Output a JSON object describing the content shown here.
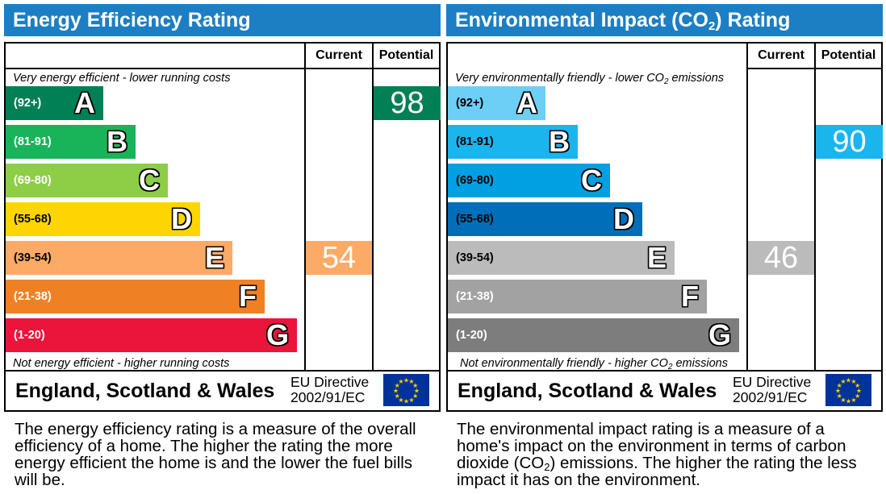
{
  "chart_data": [
    {
      "type": "bar",
      "title": "Energy Efficiency Rating",
      "columns": [
        "Current",
        "Potential"
      ],
      "top_note": "Very energy efficient - lower running costs",
      "bottom_note": "Not energy efficient - higher running costs",
      "categories": [
        "A",
        "B",
        "C",
        "D",
        "E",
        "F",
        "G"
      ],
      "ranges": [
        "(92+)",
        "(81-91)",
        "(69-80)",
        "(55-68)",
        "(39-54)",
        "(21-38)",
        "(1-20)"
      ],
      "colors": [
        "#008054",
        "#19b459",
        "#8dce46",
        "#ffd500",
        "#fcaa65",
        "#ef8023",
        "#e9153b"
      ],
      "current": {
        "value": 54,
        "band": "E",
        "color": "#fcaa65"
      },
      "potential": {
        "value": 98,
        "band": "A",
        "color": "#008054"
      },
      "footer": {
        "region": "England, Scotland & Wales",
        "directive_line1": "EU Directive",
        "directive_line2": "2002/91/EC"
      },
      "description": "The energy efficiency rating is a measure of the overall efficiency of a home. The higher the rating the more energy efficient the home is and the lower the fuel bills will be."
    },
    {
      "type": "bar",
      "title_parts": [
        "Environmental Impact (CO",
        "2",
        ") Rating"
      ],
      "columns": [
        "Current",
        "Potential"
      ],
      "top_note_parts": [
        "Very environmentally friendly - lower CO",
        "2",
        " emissions"
      ],
      "bottom_note_parts": [
        "Not environmentally friendly - higher CO",
        "2",
        " emissions"
      ],
      "categories": [
        "A",
        "B",
        "C",
        "D",
        "E",
        "F",
        "G"
      ],
      "ranges": [
        "(92+)",
        "(81-91)",
        "(69-80)",
        "(55-68)",
        "(39-54)",
        "(21-38)",
        "(1-20)"
      ],
      "colors": [
        "#6dcff6",
        "#1bb5ee",
        "#00a0e2",
        "#006eb8",
        "#bbbbbb",
        "#a2a2a2",
        "#7d7d7d"
      ],
      "current": {
        "value": 46,
        "band": "E",
        "color": "#bbbbbb"
      },
      "potential": {
        "value": 90,
        "band": "B",
        "color": "#1bb5ee"
      },
      "footer": {
        "region": "England, Scotland & Wales",
        "directive_line1": "EU Directive",
        "directive_line2": "2002/91/EC"
      },
      "description_parts": [
        "The environmental impact rating is a measure of a home's impact on the environment in terms of carbon dioxide (CO",
        "2",
        ") emissions. The higher the rating the less impact it has on the environment."
      ]
    }
  ]
}
